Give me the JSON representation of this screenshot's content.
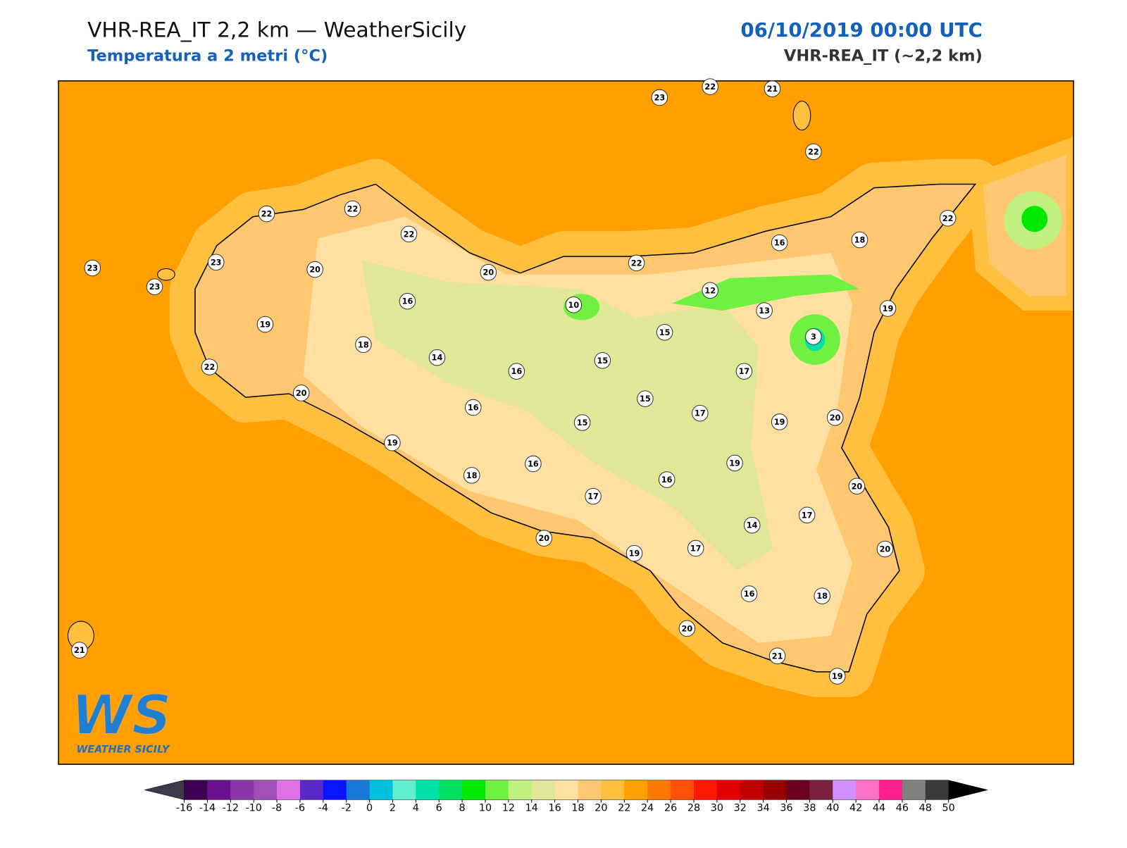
{
  "header": {
    "title": "VHR-REA_IT 2,2 km — WeatherSicily",
    "subtitle": "Temperatura a 2 metri (°C)",
    "datetime": "06/10/2019 00:00 UTC",
    "model": "VHR-REA_IT (~2,2 km)"
  },
  "map": {
    "background_color": "#ffa000",
    "stations": [
      23,
      22,
      21,
      22,
      22,
      22,
      22,
      23,
      23,
      23,
      20,
      20,
      22,
      16,
      18,
      22,
      16,
      10,
      12,
      13,
      19,
      19,
      18,
      15,
      3,
      14,
      15,
      16,
      17,
      22,
      20,
      15,
      16,
      17,
      15,
      19,
      20,
      19,
      19,
      16,
      18,
      16,
      20,
      17,
      14,
      17,
      20,
      19,
      17,
      20,
      16,
      18,
      20,
      21,
      19,
      21
    ]
  },
  "colorbar": {
    "ticks": [
      -16,
      -14,
      -12,
      -10,
      -8,
      -6,
      -4,
      -2,
      0,
      2,
      4,
      6,
      8,
      10,
      12,
      14,
      16,
      18,
      20,
      22,
      24,
      26,
      28,
      30,
      32,
      34,
      36,
      38,
      40,
      42,
      44,
      46,
      48,
      50
    ],
    "colors": [
      "#3d0050",
      "#6a1190",
      "#8a35a8",
      "#a050b8",
      "#e070e8",
      "#5a28c8",
      "#0a14ff",
      "#1878d8",
      "#00c0e0",
      "#60f0d0",
      "#00e0a8",
      "#00e060",
      "#00e800",
      "#70f040",
      "#c0f080",
      "#e0e898",
      "#ffe0a0",
      "#ffc870",
      "#ffc040",
      "#ffa000",
      "#ff7800",
      "#ff5000",
      "#ff1800",
      "#e00000",
      "#c00000",
      "#980000",
      "#6a0020",
      "#7a2040",
      "#d090ff",
      "#ff70c8",
      "#ff2090",
      "#808080",
      "#3a3a3a"
    ],
    "under_color": "#3a3a4a",
    "over_color": "#000000"
  },
  "logo": {
    "text": "WS",
    "caption": "WEATHER SICILY"
  }
}
